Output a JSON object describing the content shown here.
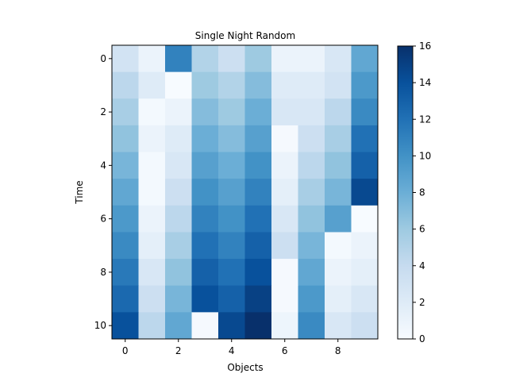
{
  "chart_data": {
    "type": "heatmap",
    "title": "Single Night Random",
    "xlabel": "Objects",
    "ylabel": "Time",
    "x_ticks": [
      0,
      2,
      4,
      6,
      8
    ],
    "y_ticks": [
      0,
      2,
      4,
      6,
      8,
      10
    ],
    "colorbar": {
      "min": 0,
      "max": 16,
      "ticks": [
        0,
        2,
        4,
        6,
        8,
        10,
        12,
        14,
        16
      ],
      "colormap": "Blues"
    },
    "grid": false,
    "values": [
      [
        3,
        1,
        11,
        5,
        3.5,
        6,
        1,
        1,
        2.5,
        8.5
      ],
      [
        4.5,
        2,
        0,
        6,
        5,
        7,
        2,
        2,
        3,
        9.5
      ],
      [
        5.5,
        0.3,
        1,
        7,
        6,
        8,
        2.5,
        2.5,
        4.5,
        10.5
      ],
      [
        6.5,
        1,
        2,
        8,
        7,
        9,
        0.2,
        3.5,
        5.5,
        12
      ],
      [
        7.5,
        0.3,
        2.5,
        9,
        8,
        10,
        1,
        4.5,
        6.5,
        13
      ],
      [
        8.5,
        0.3,
        3.5,
        10,
        9,
        11,
        1.5,
        5.5,
        7.5,
        14.5
      ],
      [
        9.5,
        1,
        4.5,
        11,
        10,
        12,
        2.5,
        6.5,
        9,
        0
      ],
      [
        10.5,
        1.5,
        5.5,
        12,
        11,
        13,
        3.5,
        7.5,
        0.3,
        1
      ],
      [
        11.5,
        2.5,
        6.5,
        13,
        12,
        14,
        0.2,
        8.5,
        1,
        1.5
      ],
      [
        12.5,
        3.5,
        7.5,
        14,
        13,
        15,
        0.2,
        9.5,
        1.5,
        2.5
      ],
      [
        14,
        4.5,
        8.5,
        0.2,
        14.5,
        16,
        0.8,
        10.5,
        2.5,
        3.5
      ]
    ]
  }
}
